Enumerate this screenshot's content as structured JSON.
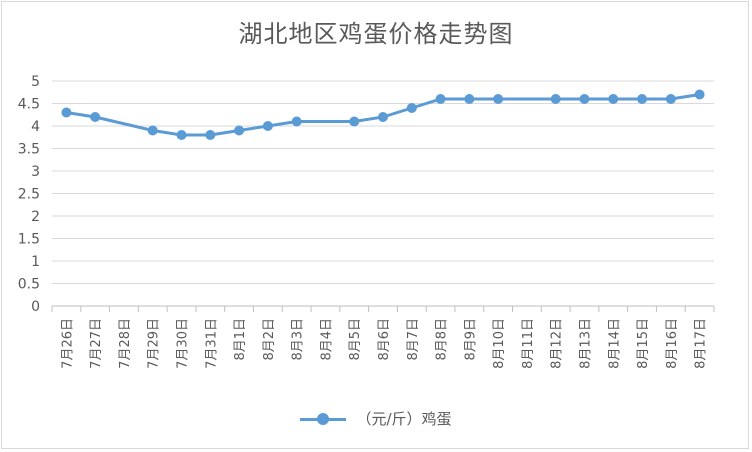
{
  "chart_data": {
    "type": "line",
    "title": "湖北地区鸡蛋价格走势图",
    "categories": [
      "7月26日",
      "7月27日",
      "7月28日",
      "7月29日",
      "7月30日",
      "7月31日",
      "8月1日",
      "8月2日",
      "8月3日",
      "8月4日",
      "8月5日",
      "8月6日",
      "8月7日",
      "8月8日",
      "8月9日",
      "8月10日",
      "8月11日",
      "8月12日",
      "8月13日",
      "8月14日",
      "8月15日",
      "8月16日",
      "8月17日"
    ],
    "series": [
      {
        "name": "（元/斤）鸡蛋",
        "color": "#5b9bd5",
        "values": [
          4.3,
          4.2,
          null,
          3.9,
          3.8,
          3.8,
          3.9,
          4.0,
          4.1,
          null,
          4.1,
          4.2,
          4.4,
          4.6,
          4.6,
          4.6,
          null,
          4.6,
          4.6,
          4.6,
          4.6,
          4.6,
          4.7
        ]
      }
    ],
    "yticks": [
      "0",
      "0.5",
      "1",
      "1.5",
      "2",
      "2.5",
      "3",
      "3.5",
      "4",
      "4.5",
      "5"
    ],
    "ylim": [
      0,
      5
    ],
    "grid": true,
    "legend_position": "bottom"
  }
}
